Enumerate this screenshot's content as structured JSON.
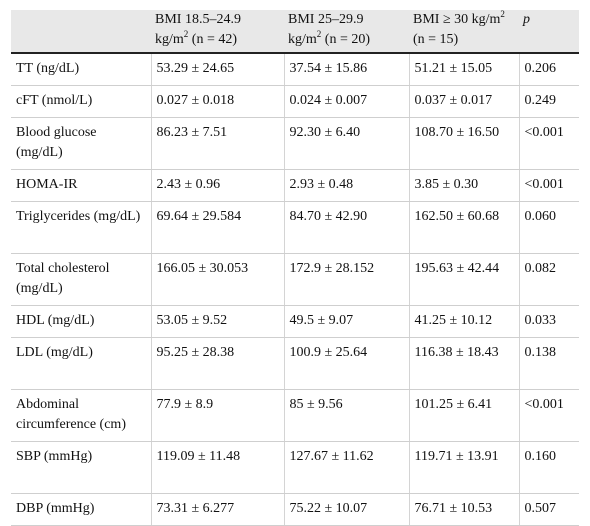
{
  "table": {
    "headers": [
      {
        "key": "label",
        "line1": "",
        "line2": ""
      },
      {
        "key": "g1",
        "line1": "BMI 18.5–24.9",
        "line2": "kg/m2 (n = 42)"
      },
      {
        "key": "g2",
        "line1": "BMI 25–29.9",
        "line2": "kg/m2 (n = 20)"
      },
      {
        "key": "g3",
        "line1": "BMI ≥ 30 kg/m2",
        "line2": "(n = 15)"
      },
      {
        "key": "p",
        "line1": "p",
        "line2": ""
      }
    ],
    "rows": [
      {
        "label": "TT (ng/dL)",
        "g1": "53.29 ± 24.65",
        "g2": "37.54 ± 15.86",
        "g3": "51.21 ± 15.05",
        "p": "0.206"
      },
      {
        "label": "cFT (nmol/L)",
        "g1": "0.027 ± 0.018",
        "g2": "0.024 ± 0.007",
        "g3": "0.037 ± 0.017",
        "p": "0.249"
      },
      {
        "label": "Blood glucose (mg/dL)",
        "g1": "86.23 ± 7.51",
        "g2": "92.30 ± 6.40",
        "g3": "108.70 ± 16.50",
        "p": "<0.001"
      },
      {
        "label": "HOMA-IR",
        "g1": "2.43 ± 0.96",
        "g2": "2.93 ± 0.48",
        "g3": "3.85 ± 0.30",
        "p": "<0.001"
      },
      {
        "label": "Triglycerides (mg/dL)",
        "g1": "69.64 ± 29.584",
        "g2": "84.70 ± 42.90",
        "g3": "162.50 ± 60.68",
        "p": "0.060"
      },
      {
        "label": "Total cholesterol (mg/dL)",
        "g1": "166.05 ± 30.053",
        "g2": "172.9 ± 28.152",
        "g3": "195.63 ± 42.44",
        "p": "0.082"
      },
      {
        "label": "HDL (mg/dL)",
        "g1": "53.05 ± 9.52",
        "g2": "49.5 ± 9.07",
        "g3": "41.25 ± 10.12",
        "p": "0.033"
      },
      {
        "label": "LDL (mg/dL)",
        "g1": "95.25 ± 28.38",
        "g2": "100.9 ± 25.64",
        "g3": "116.38 ± 18.43",
        "p": "0.138"
      },
      {
        "label": "Abdominal circumference (cm)",
        "g1": "77.9 ± 8.9",
        "g2": "85 ± 9.56",
        "g3": "101.25 ± 6.41",
        "p": "<0.001"
      },
      {
        "label": "SBP (mmHg)",
        "g1": "119.09 ± 11.48",
        "g2": "127.67 ± 11.62",
        "g3": "119.71 ± 13.91",
        "p": "0.160"
      },
      {
        "label": "DBP (mmHg)",
        "g1": "73.31 ± 6.277",
        "g2": "75.22 ± 10.07",
        "g3": "76.71 ± 10.53",
        "p": "0.507"
      }
    ]
  }
}
